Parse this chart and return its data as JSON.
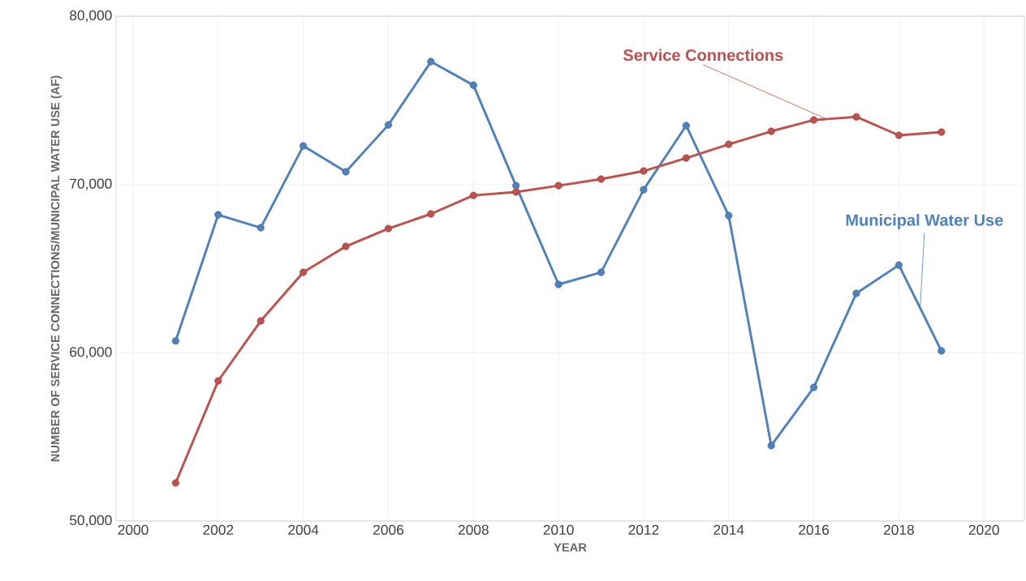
{
  "chart_data": {
    "type": "line",
    "xlabel": "YEAR",
    "ylabel": "NUMBER OF SERVICE CONNECTIONS/MUNICIPAL WATER USE (AF)",
    "x": [
      2001,
      2002,
      2003,
      2004,
      2005,
      2006,
      2007,
      2008,
      2009,
      2010,
      2011,
      2012,
      2013,
      2014,
      2015,
      2016,
      2017,
      2018,
      2019
    ],
    "series": [
      {
        "name": "Municipal Water Use",
        "color": "#4f81bd",
        "values": [
          60700,
          68200,
          67430,
          72290,
          70750,
          73540,
          77300,
          75900,
          69930,
          64060,
          64780,
          69690,
          73500,
          68150,
          54480,
          57940,
          63530,
          65210,
          60110
        ]
      },
      {
        "name": "Service Connections",
        "color": "#c0504d",
        "values": [
          52260,
          58330,
          61890,
          64780,
          66320,
          67380,
          68250,
          69350,
          69550,
          69930,
          70320,
          70800,
          71570,
          72390,
          73160,
          73830,
          74020,
          72920,
          73110
        ]
      }
    ],
    "xlim": [
      1999.6,
      2020.95
    ],
    "ylim": [
      50000,
      80000
    ],
    "xticks": [
      2000,
      2002,
      2004,
      2006,
      2008,
      2010,
      2012,
      2014,
      2016,
      2018,
      2020
    ],
    "yticks": [
      {
        "value": 50000,
        "label": "50,000"
      },
      {
        "value": 60000,
        "label": "60,000"
      },
      {
        "value": 70000,
        "label": "70,000"
      },
      {
        "value": 80000,
        "label": "80,000"
      }
    ],
    "grid": true,
    "legend": false,
    "marker": "circle",
    "line_style": "solid"
  }
}
